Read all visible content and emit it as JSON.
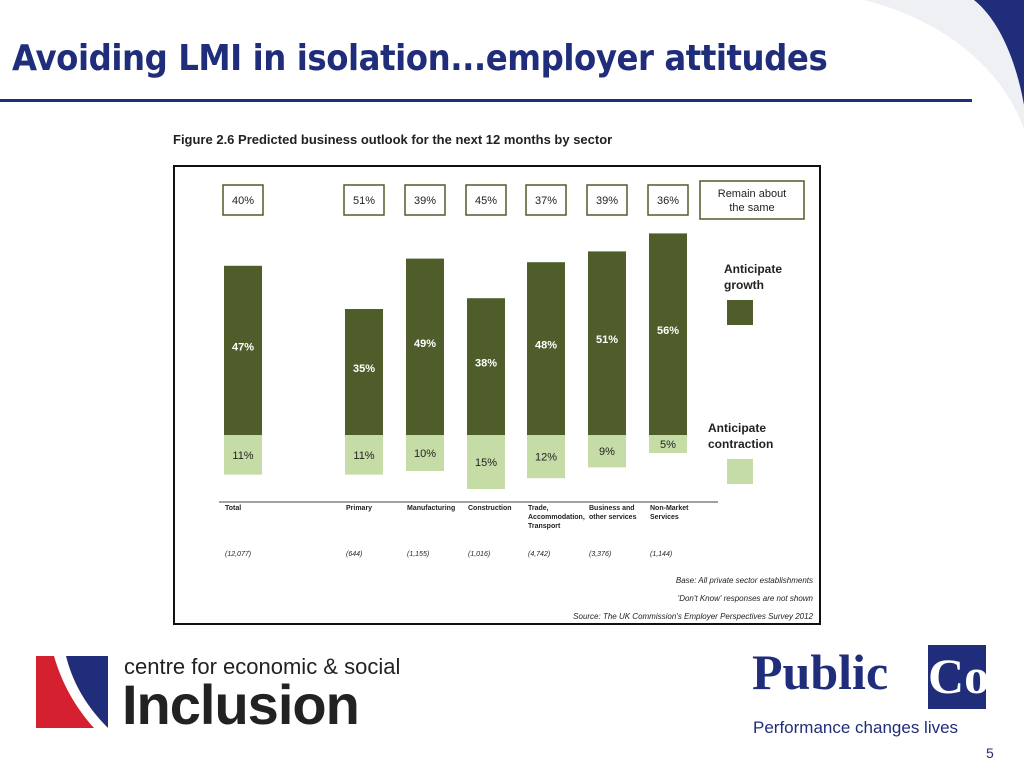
{
  "slide": {
    "title": "Avoiding LMI in isolation...employer attitudes",
    "number": "5",
    "brand_color": "#1f2d7a"
  },
  "figure": {
    "caption": "Figure 2.6  Predicted business outlook for the next 12 months by sector"
  },
  "chart_data": {
    "type": "bar",
    "stacked": true,
    "categories": [
      "Total",
      "Primary",
      "Manufacturing",
      "Construction",
      "Trade, Accommodation, Transport",
      "Business and other services",
      "Non-Market Services"
    ],
    "category_lines": [
      [
        "Total"
      ],
      [
        "Primary"
      ],
      [
        "Manufacturing"
      ],
      [
        "Construction"
      ],
      [
        "Trade,",
        "Accommodation,",
        "Transport"
      ],
      [
        "Business and",
        "other services"
      ],
      [
        "Non-Market",
        "Services"
      ]
    ],
    "sample_sizes": [
      "(12,077)",
      "(644)",
      "(1,155)",
      "(1,016)",
      "(4,742)",
      "(3,376)",
      "(1,144)"
    ],
    "series": [
      {
        "name": "Anticipate growth",
        "color": "#4e5d2a",
        "values": [
          47,
          35,
          49,
          38,
          48,
          51,
          56
        ]
      },
      {
        "name": "Anticipate contraction",
        "color": "#c6dca6",
        "values": [
          11,
          11,
          10,
          15,
          12,
          9,
          5
        ]
      },
      {
        "name": "Remain about the same",
        "values": [
          40,
          51,
          39,
          45,
          37,
          39,
          36
        ]
      }
    ],
    "legend": {
      "remain_lines": [
        "Remain about",
        "the same"
      ],
      "growth_lines": [
        "Anticipate",
        "growth"
      ],
      "contraction_lines": [
        "Anticipate",
        "contraction"
      ],
      "placement": "right"
    },
    "notes": [
      "Base: All  private sector establishments",
      "'Don't Know' responses are not shown",
      "Source: The UK Commission's Employer Perspectives Survey 2012"
    ]
  },
  "logos": {
    "inclusion": {
      "line1": "centre for economic & social",
      "line2": "Inclusion"
    },
    "publicco": {
      "part1": "Public",
      "part2": "Co",
      "tagline": "Performance changes lives"
    }
  }
}
